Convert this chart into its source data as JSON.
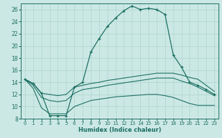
{
  "xlabel": "Humidex (Indice chaleur)",
  "xlim": [
    -0.5,
    23.5
  ],
  "ylim": [
    8,
    27
  ],
  "xticks": [
    0,
    1,
    2,
    3,
    4,
    5,
    6,
    7,
    8,
    9,
    10,
    11,
    12,
    13,
    14,
    15,
    16,
    17,
    18,
    19,
    20,
    21,
    22,
    23
  ],
  "yticks": [
    8,
    10,
    12,
    14,
    16,
    18,
    20,
    22,
    24,
    26
  ],
  "bg_color": "#cce8e4",
  "line_color": "#1a6e62",
  "grid_color": "#aad4cc",
  "lines": [
    {
      "x": [
        0,
        1,
        2,
        3,
        4,
        5,
        6,
        7,
        8,
        9,
        10,
        11,
        12,
        13,
        14,
        15,
        16,
        17,
        18,
        19,
        20,
        21,
        22,
        23
      ],
      "y": [
        14.5,
        13.8,
        12.2,
        8.5,
        8.5,
        8.5,
        13.2,
        14.0,
        19.0,
        21.2,
        23.2,
        24.6,
        25.8,
        26.6,
        26.0,
        26.2,
        26.0,
        25.2,
        18.5,
        16.5,
        14.0,
        13.5,
        12.8,
        12.0
      ],
      "marker": true
    },
    {
      "x": [
        0,
        1,
        2,
        3,
        4,
        5,
        6,
        7,
        8,
        9,
        10,
        11,
        12,
        13,
        14,
        15,
        16,
        17,
        18,
        19,
        20,
        21,
        22,
        23
      ],
      "y": [
        14.5,
        13.8,
        12.2,
        12.0,
        11.8,
        12.0,
        13.2,
        13.5,
        13.8,
        14.0,
        14.3,
        14.5,
        14.7,
        14.9,
        15.1,
        15.3,
        15.5,
        15.5,
        15.5,
        15.2,
        14.8,
        14.5,
        13.5,
        12.5
      ],
      "marker": false
    },
    {
      "x": [
        0,
        1,
        2,
        3,
        4,
        5,
        6,
        7,
        8,
        9,
        10,
        11,
        12,
        13,
        14,
        15,
        16,
        17,
        18,
        19,
        20,
        21,
        22,
        23
      ],
      "y": [
        14.5,
        13.5,
        11.5,
        11.0,
        10.8,
        11.0,
        12.2,
        12.8,
        13.0,
        13.2,
        13.5,
        13.7,
        13.9,
        14.1,
        14.3,
        14.5,
        14.7,
        14.7,
        14.7,
        14.2,
        13.8,
        13.2,
        12.5,
        11.8
      ],
      "marker": false
    },
    {
      "x": [
        0,
        1,
        2,
        3,
        4,
        5,
        6,
        7,
        8,
        9,
        10,
        11,
        12,
        13,
        14,
        15,
        16,
        17,
        18,
        19,
        20,
        21,
        22,
        23
      ],
      "y": [
        14.5,
        13.0,
        9.8,
        8.8,
        8.8,
        8.8,
        10.0,
        10.5,
        11.0,
        11.2,
        11.4,
        11.6,
        11.7,
        11.8,
        11.9,
        12.0,
        12.0,
        11.8,
        11.5,
        11.0,
        10.5,
        10.2,
        10.2,
        10.2
      ],
      "marker": false
    }
  ]
}
